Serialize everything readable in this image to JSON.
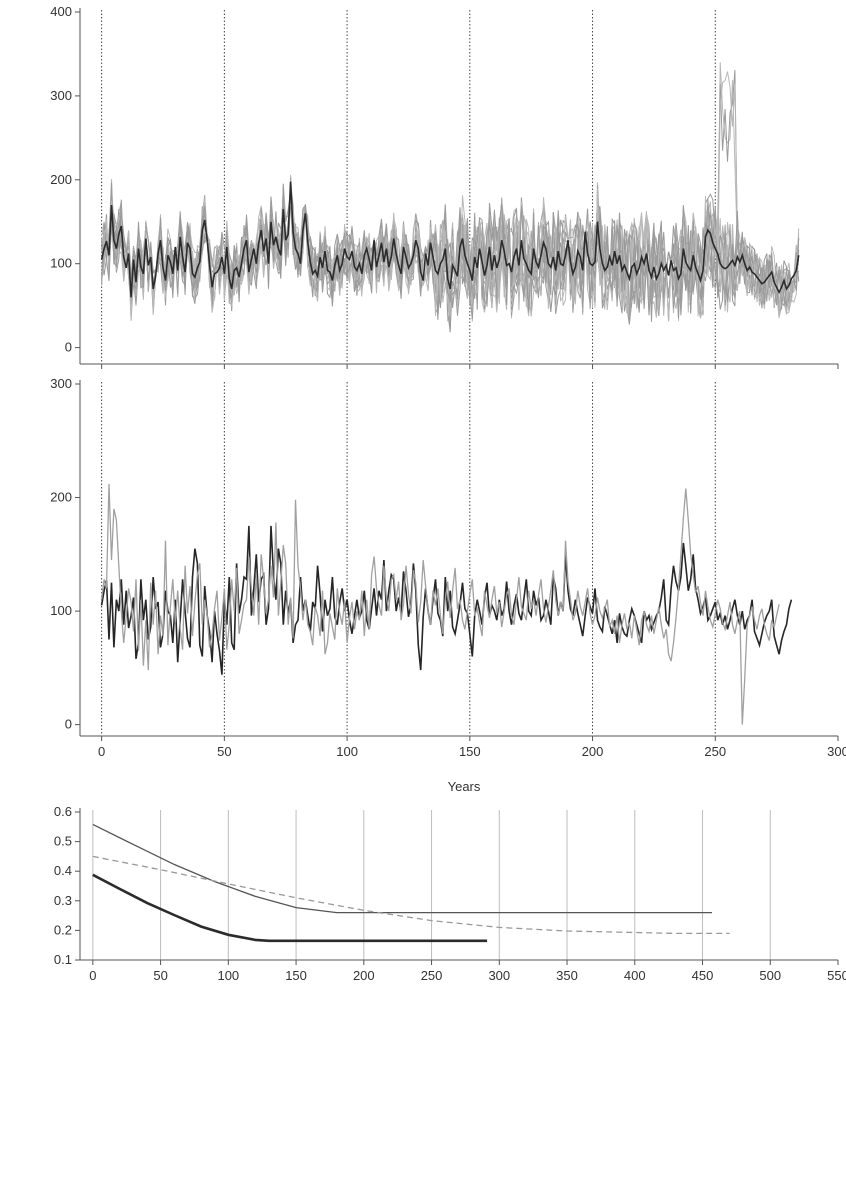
{
  "chart_data": [
    {
      "id": "top",
      "type": "line",
      "title": "",
      "xlabel": "",
      "ylabel": "",
      "xlim": [
        -8,
        300
      ],
      "ylim": [
        -10,
        400
      ],
      "yticks": [
        0,
        100,
        200,
        300,
        400
      ],
      "xticks": [
        0,
        50,
        100,
        150,
        200,
        250,
        300
      ],
      "show_x_tick_labels": false,
      "vlines": [
        0,
        50,
        100,
        150,
        200,
        250
      ],
      "series": [
        {
          "role": "mean",
          "color": "#2b2b2b",
          "values": [
            105,
            118,
            127,
            110,
            170,
            128,
            118,
            135,
            145,
            108,
            95,
            112,
            60,
            105,
            78,
            118,
            96,
            88,
            130,
            98,
            108,
            70,
            85,
            112,
            128,
            95,
            80,
            110,
            102,
            88,
            120,
            92,
            132,
            108,
            90,
            125,
            118,
            88,
            84,
            95,
            102,
            140,
            152,
            128,
            98,
            72,
            88,
            90,
            95,
            108,
            88,
            120,
            82,
            70,
            92,
            95,
            84,
            100,
            118,
            128,
            90,
            105,
            118,
            100,
            125,
            140,
            115,
            130,
            100,
            150,
            122,
            132,
            118,
            110,
            165,
            128,
            135,
            198,
            138,
            118,
            112,
            100,
            140,
            160,
            125,
            102,
            88,
            92,
            85,
            108,
            95,
            115,
            92,
            90,
            80,
            98,
            110,
            92,
            100,
            118,
            108,
            105,
            115,
            96,
            92,
            100,
            88,
            110,
            118,
            105,
            92,
            128,
            96,
            110,
            125,
            102,
            118,
            96,
            108,
            130,
            112,
            98,
            88,
            120,
            108,
            95,
            100,
            110,
            128,
            118,
            90,
            80,
            112,
            98,
            125,
            108,
            92,
            88,
            100,
            105,
            118,
            82,
            70,
            98,
            92,
            85,
            120,
            130,
            110,
            100,
            92,
            80,
            108,
            95,
            118,
            102,
            86,
            98,
            120,
            92,
            110,
            95,
            105,
            128,
            115,
            98,
            100,
            90,
            108,
            118,
            98,
            128,
            106,
            100,
            92,
            88,
            118,
            102,
            96,
            110,
            125,
            118,
            100,
            96,
            108,
            92,
            115,
            100,
            98,
            110,
            128,
            102,
            88,
            96,
            115,
            108,
            92,
            138,
            112,
            100,
            98,
            102,
            150,
            118,
            100,
            92,
            96,
            108,
            98,
            115,
            100,
            110,
            92,
            98,
            90,
            82,
            96,
            100,
            88,
            95,
            108,
            100,
            112,
            92,
            84,
            96,
            82,
            88,
            100,
            92,
            98,
            86,
            104,
            92,
            95,
            82,
            88,
            118,
            102,
            96,
            92,
            110,
            96,
            88,
            80,
            92,
            132,
            140,
            136,
            125,
            118,
            112,
            100,
            96,
            94,
            96,
            100,
            104,
            98,
            108,
            102,
            110,
            100,
            92,
            96,
            90,
            88,
            84,
            80,
            76,
            78,
            82,
            86,
            90,
            78,
            72,
            66,
            72,
            80,
            70,
            74,
            82,
            86,
            92,
            110
          ]
        }
      ]
    },
    {
      "id": "middle",
      "type": "line",
      "title": "",
      "xlabel": "Years",
      "ylabel": "",
      "xlim": [
        -8,
        300
      ],
      "ylim": [
        -10,
        300
      ],
      "yticks": [
        0,
        100,
        200,
        300
      ],
      "xticks": [
        0,
        50,
        100,
        150,
        200,
        250,
        300
      ],
      "vlines": [
        0,
        50,
        100,
        150,
        200,
        250
      ],
      "series": [
        {
          "role": "series-dark",
          "color": "#262626",
          "values": [
            105,
            118,
            127,
            75,
            125,
            68,
            110,
            100,
            128,
            88,
            118,
            85,
            96,
            112,
            58,
            72,
            128,
            92,
            110,
            75,
            86,
            130,
            102,
            108,
            68,
            80,
            118,
            100,
            96,
            72,
            110,
            55,
            92,
            128,
            100,
            76,
            68,
            130,
            155,
            142,
            70,
            60,
            122,
            96,
            82,
            55,
            100,
            80,
            65,
            44,
            110,
            88,
            130,
            72,
            66,
            142,
            98,
            110,
            130,
            128,
            175,
            96,
            120,
            150,
            108,
            128,
            132,
            88,
            102,
            175,
            132,
            110,
            155,
            142,
            88,
            118,
            98,
            110,
            72,
            88,
            92,
            130,
            100,
            110,
            96,
            82,
            108,
            102,
            140,
            115,
            82,
            110,
            96,
            102,
            130,
            95,
            88,
            108,
            120,
            100,
            110,
            92,
            80,
            96,
            110,
            94,
            100,
            118,
            92,
            84,
            102,
            120,
            96,
            118,
            110,
            145,
            100,
            118,
            132,
            128,
            100,
            112,
            98,
            135,
            118,
            95,
            106,
            142,
            118,
            70,
            48,
            95,
            120,
            100,
            88,
            110,
            128,
            98,
            92,
            78,
            130,
            100,
            118,
            86,
            80,
            92,
            106,
            125,
            102,
            98,
            80,
            60,
            96,
            110,
            100,
            88,
            112,
            125,
            96,
            105,
            100,
            92,
            110,
            96,
            102,
            126,
            100,
            88,
            105,
            115,
            98,
            92,
            110,
            128,
            100,
            96,
            118,
            105,
            112,
            92,
            96,
            110,
            100,
            88,
            130,
            120,
            96,
            108,
            100,
            150,
            118,
            102,
            96,
            110,
            98,
            88,
            78,
            96,
            112,
            104,
            98,
            120,
            92,
            86,
            82,
            104,
            96,
            88,
            80,
            92,
            72,
            98,
            86,
            80,
            78,
            92,
            102,
            96,
            88,
            80,
            72,
            100,
            92,
            96,
            84,
            90,
            96,
            100,
            112,
            128,
            92,
            88,
            120,
            140,
            126,
            118,
            130,
            160,
            140,
            118,
            128,
            150,
            120,
            110,
            98,
            104,
            112,
            92,
            96,
            102,
            108,
            92,
            98,
            88,
            96,
            84,
            92,
            102,
            110,
            96,
            88,
            100,
            84,
            92,
            96,
            110,
            82,
            76,
            70,
            80,
            90,
            96,
            100,
            110,
            78,
            70,
            62,
            74,
            82,
            88,
            102,
            110
          ]
        },
        {
          "role": "series-light",
          "color": "#a0a0a0",
          "values": [
            110,
            128,
            120,
            212,
            145,
            190,
            180,
            140,
            100,
            72,
            95,
            120,
            108,
            82,
            128,
            65,
            110,
            52,
            92,
            48,
            125,
            88,
            118,
            62,
            96,
            78,
            162,
            70,
            104,
            128,
            90,
            118,
            84,
            66,
            140,
            98,
            122,
            78,
            108,
            132,
            142,
            88,
            110,
            96,
            68,
            80,
            102,
            118,
            74,
            95,
            120,
            66,
            88,
            128,
            100,
            138,
            80,
            92,
            106,
            110,
            148,
            120,
            96,
            132,
            88,
            150,
            128,
            98,
            110,
            140,
            112,
            178,
            96,
            125,
            158,
            142,
            88,
            112,
            76,
            198,
            140,
            120,
            92,
            110,
            88,
            82,
            70,
            104,
            96,
            78,
            118,
            62,
            72,
            98,
            86,
            75,
            120,
            98,
            88,
            110,
            72,
            94,
            108,
            84,
            100,
            92,
            118,
            78,
            110,
            84,
            132,
            148,
            120,
            105,
            96,
            140,
            112,
            100,
            128,
            132,
            110,
            126,
            92,
            106,
            140,
            115,
            98,
            136,
            125,
            90,
            108,
            145,
            122,
            100,
            88,
            118,
            105,
            120,
            96,
            80,
            110,
            126,
            94,
            118,
            138,
            102,
            110,
            92,
            84,
            100,
            115,
            128,
            96,
            102,
            90,
            78,
            118,
            105,
            94,
            110,
            122,
            98,
            108,
            86,
            100,
            114,
            120,
            96,
            88,
            110,
            130,
            104,
            98,
            92,
            118,
            102,
            110,
            96,
            114,
            128,
            102,
            90,
            104,
            118,
            136,
            110,
            96,
            108,
            100,
            162,
            126,
            110,
            92,
            98,
            118,
            104,
            96,
            108,
            120,
            98,
            88,
            96,
            112,
            100,
            94,
            102,
            110,
            86,
            92,
            80,
            96,
            72,
            88,
            98,
            84,
            90,
            76,
            96,
            84,
            70,
            92,
            100,
            88,
            82,
            96,
            80,
            92,
            104,
            88,
            76,
            84,
            62,
            56,
            72,
            94,
            120,
            150,
            182,
            208,
            180,
            150,
            132,
            116,
            122,
            108,
            96,
            118,
            104,
            92,
            86,
            98,
            110,
            102,
            90,
            84,
            96,
            108,
            88,
            80,
            92,
            100,
            0,
            40,
            88,
            96,
            104,
            92,
            84,
            96,
            102,
            88,
            80,
            74,
            92,
            86,
            96,
            106
          ]
        }
      ]
    },
    {
      "id": "bottom",
      "type": "line",
      "title": "",
      "xlabel": "",
      "ylabel": "",
      "xlim": [
        -8,
        550
      ],
      "ylim": [
        0.1,
        0.6
      ],
      "yticks": [
        0.1,
        0.2,
        0.3,
        0.4,
        0.5,
        0.6
      ],
      "xticks": [
        0,
        50,
        100,
        150,
        200,
        250,
        300,
        350,
        400,
        450,
        500,
        550
      ],
      "vlines": [
        0,
        50,
        100,
        150,
        200,
        250,
        300,
        350,
        400,
        450,
        500
      ],
      "series": [
        {
          "role": "thin-solid",
          "color": "#555555",
          "dash": false,
          "x": [
            0,
            30,
            60,
            90,
            120,
            150,
            180,
            250,
            350,
            457
          ],
          "y": [
            0.558,
            0.49,
            0.423,
            0.365,
            0.315,
            0.277,
            0.26,
            0.26,
            0.26,
            0.26
          ]
        },
        {
          "role": "dashed",
          "color": "#999999",
          "dash": true,
          "x": [
            0,
            50,
            100,
            150,
            200,
            250,
            300,
            350,
            400,
            430,
            470
          ],
          "y": [
            0.45,
            0.405,
            0.357,
            0.31,
            0.268,
            0.233,
            0.21,
            0.198,
            0.193,
            0.19,
            0.19
          ]
        },
        {
          "role": "thick-solid",
          "color": "#2b2b2b",
          "dash": false,
          "x": [
            0,
            20,
            40,
            60,
            80,
            100,
            120,
            130,
            200,
            291
          ],
          "y": [
            0.388,
            0.34,
            0.293,
            0.252,
            0.213,
            0.185,
            0.168,
            0.165,
            0.165,
            0.165
          ]
        }
      ]
    }
  ]
}
